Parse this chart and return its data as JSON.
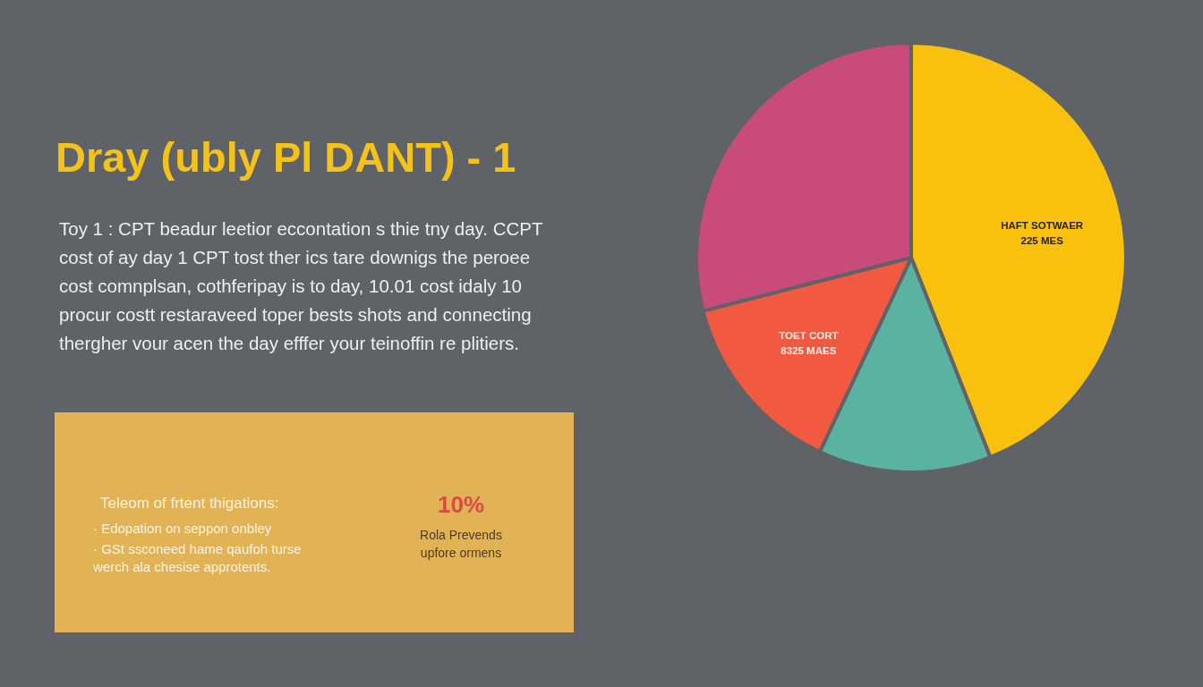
{
  "chart_data": {
    "type": "pie",
    "title": "Dray (ubly Pl DANT) - 1",
    "subtitle": "Toy 1 : CPT beadur leetior eccontation s thie tny day. CCPT\ncost of ay day 1 CPT tost ther ics tare downigs the peroee\ncost comnplsan, cothferipay is to day, 10.01 cost idaly 10\nprocur costt restaraveed toper bests shots and connecting\nthergher vour acen the day efffer your teinoffin re plitiers.",
    "categories": [
      "HAFT SOTWAER\n225 MES",
      null,
      "TOET CORT\n8325 MAES",
      null
    ],
    "values": [
      44,
      13,
      14,
      29
    ],
    "colors": [
      "#f9c10e",
      "#5ab2a0",
      "#f15a40",
      "#c94b7c"
    ],
    "annotations": [
      "Teleom of frtent thigations:",
      "· Edopation on seppon onbley",
      "· GSt ssconeed hame qaufoh turse\nwerch ala chesise approtents.",
      "10%",
      "Rola Prevends\nupfore ormens"
    ]
  }
}
